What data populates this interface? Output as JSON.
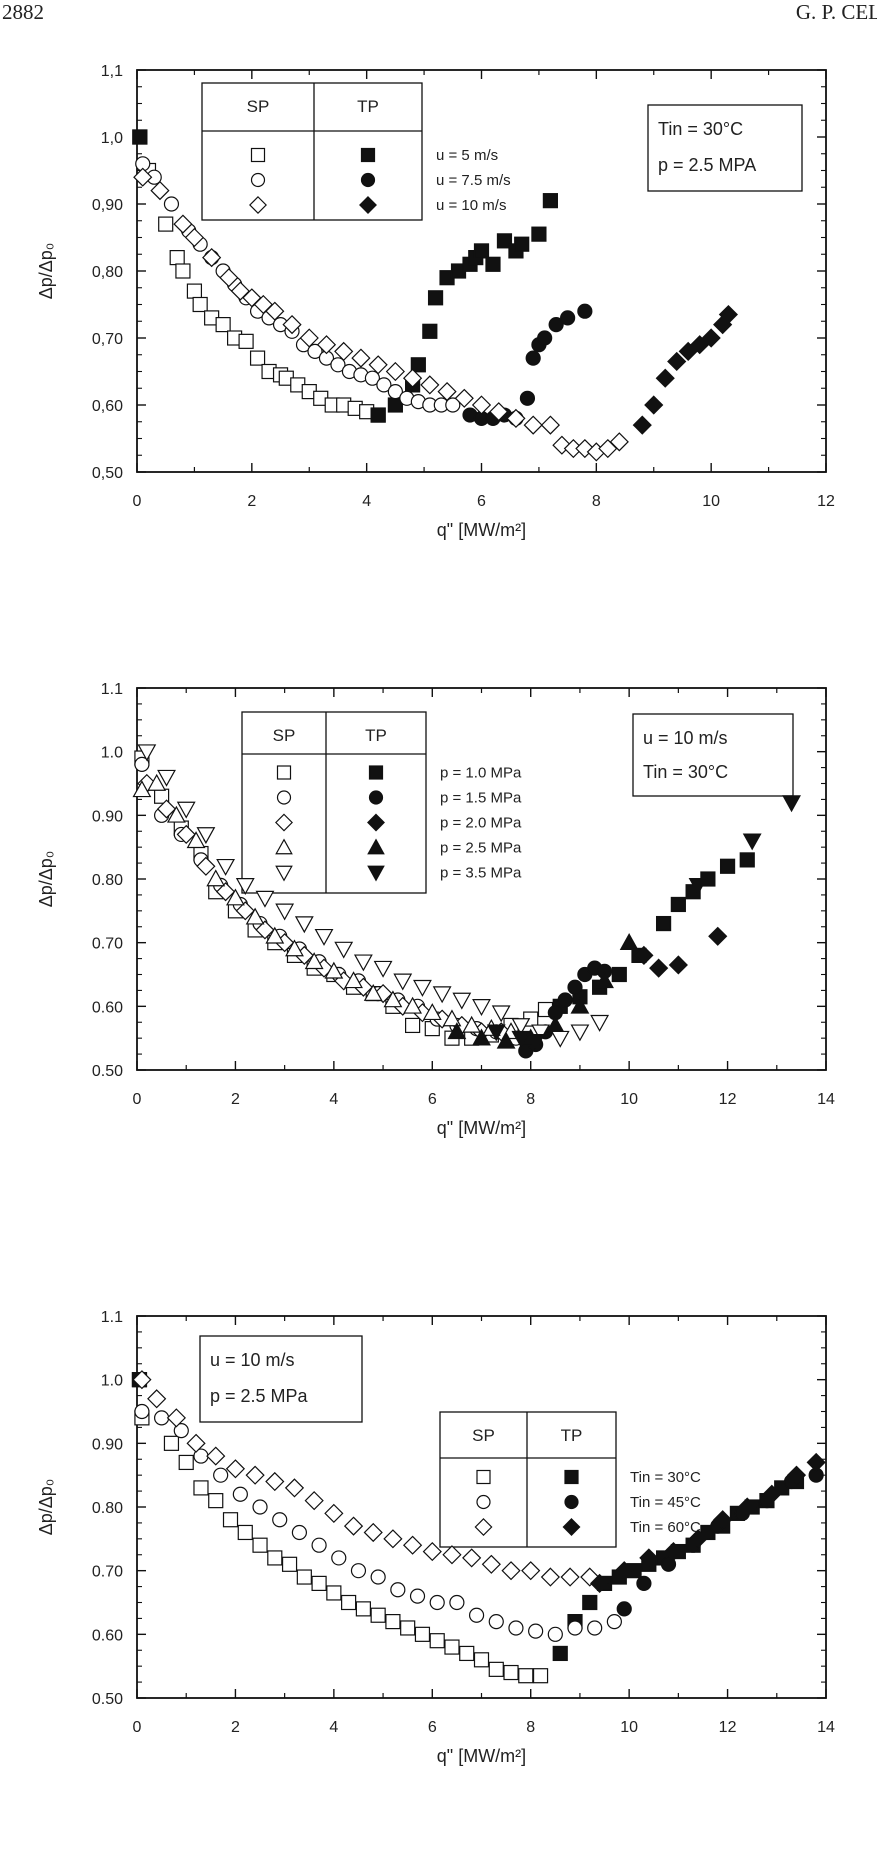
{
  "page": {
    "number": "2882",
    "running_head": "G. P. CEL"
  },
  "chart_data": [
    {
      "type": "scatter",
      "xlabel": "q\" [MW/m²]",
      "ylabel": "Δp/Δp₀",
      "xlim": [
        0,
        12
      ],
      "ylim": [
        0.5,
        1.1
      ],
      "x_ticks": [
        "0",
        "2",
        "4",
        "6",
        "8",
        "10",
        "12"
      ],
      "y_ticks": [
        "0,50",
        "0,60",
        "0,70",
        "0,80",
        "0,90",
        "1,0",
        "1,1"
      ],
      "legend": {
        "headers": [
          "SP",
          "TP"
        ],
        "entries": [
          "u = 5 m/s",
          "u = 7.5 m/s",
          "u = 10 m/s"
        ]
      },
      "info": [
        "Tin = 30°C",
        "p = 2.5 MPA"
      ],
      "series": [
        {
          "name": "u = 5 m/s",
          "regime": "SP",
          "shape": "square",
          "filled": false,
          "x": [
            0.05,
            0.2,
            0.5,
            0.7,
            0.8,
            1.0,
            1.1,
            1.3,
            1.5,
            1.7,
            1.9,
            2.1,
            2.3,
            2.5,
            2.6,
            2.8,
            3.0,
            3.2,
            3.4,
            3.6,
            3.8,
            4.0,
            4.2
          ],
          "y": [
            1.0,
            0.95,
            0.87,
            0.82,
            0.8,
            0.77,
            0.75,
            0.73,
            0.72,
            0.7,
            0.695,
            0.67,
            0.65,
            0.645,
            0.64,
            0.63,
            0.62,
            0.61,
            0.6,
            0.6,
            0.595,
            0.59,
            0.585
          ]
        },
        {
          "name": "u = 5 m/s",
          "regime": "TP",
          "shape": "square",
          "filled": true,
          "x": [
            0.05,
            4.2,
            4.5,
            4.8,
            4.9,
            5.1,
            5.2,
            5.4,
            5.6,
            5.8,
            5.9,
            6.0,
            6.2,
            6.4,
            6.6,
            6.7,
            7.0,
            7.2
          ],
          "y": [
            1.0,
            0.585,
            0.6,
            0.63,
            0.66,
            0.71,
            0.76,
            0.79,
            0.8,
            0.81,
            0.82,
            0.83,
            0.81,
            0.845,
            0.83,
            0.84,
            0.855,
            0.905
          ]
        },
        {
          "name": "u = 7.5 m/s",
          "regime": "SP",
          "shape": "circle",
          "filled": false,
          "x": [
            0.1,
            0.3,
            0.6,
            0.9,
            1.1,
            1.3,
            1.5,
            1.7,
            1.9,
            2.1,
            2.3,
            2.5,
            2.7,
            2.9,
            3.1,
            3.3,
            3.5,
            3.7,
            3.9,
            4.1,
            4.3,
            4.5,
            4.7,
            4.9,
            5.1,
            5.3,
            5.5
          ],
          "y": [
            0.96,
            0.94,
            0.9,
            0.86,
            0.84,
            0.82,
            0.8,
            0.78,
            0.76,
            0.74,
            0.73,
            0.72,
            0.71,
            0.69,
            0.68,
            0.67,
            0.66,
            0.65,
            0.645,
            0.64,
            0.63,
            0.62,
            0.61,
            0.605,
            0.6,
            0.6,
            0.6
          ]
        },
        {
          "name": "u = 7.5 m/s",
          "regime": "TP",
          "shape": "circle",
          "filled": true,
          "x": [
            5.8,
            6.0,
            6.2,
            6.4,
            6.6,
            6.8,
            6.9,
            7.0,
            7.1,
            7.3,
            7.5,
            7.8
          ],
          "y": [
            0.585,
            0.58,
            0.58,
            0.585,
            0.58,
            0.61,
            0.67,
            0.69,
            0.7,
            0.72,
            0.73,
            0.74
          ]
        },
        {
          "name": "u = 10 m/s",
          "regime": "SP",
          "shape": "diamond",
          "filled": false,
          "x": [
            0.1,
            0.4,
            0.8,
            1.0,
            1.3,
            1.6,
            1.8,
            2.0,
            2.2,
            2.4,
            2.7,
            3.0,
            3.3,
            3.6,
            3.9,
            4.2,
            4.5,
            4.8,
            5.1,
            5.4,
            5.7,
            6.0,
            6.3,
            6.6,
            6.9,
            7.2,
            7.4,
            7.6,
            7.8,
            8.0,
            8.2,
            8.4
          ],
          "y": [
            0.94,
            0.92,
            0.87,
            0.85,
            0.82,
            0.79,
            0.77,
            0.76,
            0.75,
            0.74,
            0.72,
            0.7,
            0.69,
            0.68,
            0.67,
            0.66,
            0.65,
            0.64,
            0.63,
            0.62,
            0.61,
            0.6,
            0.59,
            0.58,
            0.57,
            0.57,
            0.54,
            0.535,
            0.535,
            0.53,
            0.535,
            0.545
          ]
        },
        {
          "name": "u = 10 m/s",
          "regime": "TP",
          "shape": "diamond",
          "filled": true,
          "x": [
            8.8,
            9.0,
            9.2,
            9.4,
            9.6,
            9.8,
            10.0,
            10.2,
            10.3
          ],
          "y": [
            0.57,
            0.6,
            0.64,
            0.665,
            0.68,
            0.69,
            0.7,
            0.72,
            0.735
          ]
        }
      ]
    },
    {
      "type": "scatter",
      "xlabel": "q\" [MW/m²]",
      "ylabel": "Δp/Δp₀",
      "xlim": [
        0,
        14
      ],
      "ylim": [
        0.5,
        1.1
      ],
      "x_ticks": [
        "0",
        "2",
        "4",
        "6",
        "8",
        "10",
        "12",
        "14"
      ],
      "y_ticks": [
        "0.50",
        "0.60",
        "0.70",
        "0.80",
        "0.90",
        "1.0",
        "1.1"
      ],
      "legend": {
        "headers": [
          "SP",
          "TP"
        ],
        "entries": [
          "p = 1.0 MPa",
          "p = 1.5 MPa",
          "p = 2.0 MPa",
          "p = 2.5 MPa",
          "p = 3.5 MPa"
        ]
      },
      "info": [
        "u = 10 m/s",
        "Tin = 30°C"
      ],
      "series": [
        {
          "name": "p = 1.0 MPa",
          "regime": "SP",
          "shape": "square",
          "filled": false,
          "x": [
            0.1,
            0.5,
            0.9,
            1.3,
            1.6,
            2.0,
            2.4,
            2.8,
            3.2,
            3.6,
            4.0,
            4.4,
            4.8,
            5.2,
            5.6,
            6.0,
            6.4,
            6.8,
            7.2,
            7.6,
            8.0,
            8.3
          ],
          "y": [
            0.99,
            0.93,
            0.88,
            0.84,
            0.78,
            0.75,
            0.72,
            0.7,
            0.68,
            0.66,
            0.65,
            0.63,
            0.62,
            0.6,
            0.57,
            0.565,
            0.55,
            0.55,
            0.555,
            0.57,
            0.58,
            0.595
          ]
        },
        {
          "name": "p = 1.0 MPa",
          "regime": "TP",
          "shape": "square",
          "filled": true,
          "x": [
            8.6,
            9.0,
            9.4,
            9.8,
            10.2,
            10.7,
            11.0,
            11.3,
            11.6,
            12.0,
            12.4
          ],
          "y": [
            0.6,
            0.615,
            0.63,
            0.65,
            0.68,
            0.73,
            0.76,
            0.78,
            0.8,
            0.82,
            0.83
          ]
        },
        {
          "name": "p = 1.5 MPa",
          "regime": "SP",
          "shape": "circle",
          "filled": false,
          "x": [
            0.1,
            0.5,
            0.9,
            1.3,
            1.7,
            2.1,
            2.5,
            2.9,
            3.3,
            3.7,
            4.1,
            4.5,
            4.9,
            5.3,
            5.7,
            6.1,
            6.5,
            6.9,
            7.3,
            7.7
          ],
          "y": [
            0.98,
            0.9,
            0.87,
            0.83,
            0.79,
            0.76,
            0.73,
            0.71,
            0.69,
            0.67,
            0.65,
            0.64,
            0.62,
            0.61,
            0.6,
            0.58,
            0.57,
            0.565,
            0.56,
            0.55
          ]
        },
        {
          "name": "p = 1.5 MPa",
          "regime": "TP",
          "shape": "circle",
          "filled": true,
          "x": [
            7.9,
            8.1,
            8.3,
            8.5,
            8.7,
            8.9,
            9.1,
            9.3,
            9.5
          ],
          "y": [
            0.53,
            0.54,
            0.56,
            0.59,
            0.61,
            0.63,
            0.65,
            0.66,
            0.655
          ]
        },
        {
          "name": "p = 2.0 MPa",
          "regime": "SP",
          "shape": "diamond",
          "filled": false,
          "x": [
            0.2,
            0.6,
            1.0,
            1.4,
            1.8,
            2.2,
            2.6,
            3.0,
            3.4,
            3.8,
            4.2,
            4.6,
            5.0,
            5.4,
            5.8,
            6.2,
            6.6,
            7.0,
            7.4
          ],
          "y": [
            0.95,
            0.91,
            0.87,
            0.82,
            0.78,
            0.75,
            0.72,
            0.7,
            0.68,
            0.66,
            0.64,
            0.63,
            0.62,
            0.6,
            0.59,
            0.58,
            0.57,
            0.56,
            0.56
          ]
        },
        {
          "name": "p = 2.0 MPa",
          "regime": "TP",
          "shape": "diamond",
          "filled": true,
          "x": [
            10.3,
            10.6,
            11.0,
            11.8
          ],
          "y": [
            0.68,
            0.66,
            0.665,
            0.71
          ]
        },
        {
          "name": "p = 2.5 MPa",
          "regime": "SP",
          "shape": "triangle-up",
          "filled": false,
          "x": [
            0.1,
            0.4,
            0.8,
            1.2,
            1.6,
            2.0,
            2.4,
            2.8,
            3.2,
            3.6,
            4.0,
            4.4,
            4.8,
            5.2,
            5.6,
            6.0,
            6.4,
            6.8,
            7.2,
            7.6
          ],
          "y": [
            0.94,
            0.95,
            0.9,
            0.86,
            0.8,
            0.77,
            0.74,
            0.71,
            0.69,
            0.67,
            0.655,
            0.64,
            0.62,
            0.61,
            0.6,
            0.59,
            0.58,
            0.57,
            0.565,
            0.56
          ]
        },
        {
          "name": "p = 2.5 MPa",
          "regime": "TP",
          "shape": "triangle-up",
          "filled": true,
          "x": [
            6.5,
            7.0,
            7.5,
            8.0,
            8.5,
            9.0,
            9.5,
            10.0
          ],
          "y": [
            0.56,
            0.55,
            0.545,
            0.55,
            0.57,
            0.6,
            0.64,
            0.7
          ]
        },
        {
          "name": "p = 3.5 MPa",
          "regime": "SP",
          "shape": "triangle-down",
          "filled": false,
          "x": [
            0.2,
            0.6,
            1.0,
            1.4,
            1.8,
            2.2,
            2.6,
            3.0,
            3.4,
            3.8,
            4.2,
            4.6,
            5.0,
            5.4,
            5.8,
            6.2,
            6.6,
            7.0,
            7.4,
            7.8,
            8.2,
            8.6,
            9.0,
            9.4
          ],
          "y": [
            1.0,
            0.96,
            0.91,
            0.87,
            0.82,
            0.79,
            0.77,
            0.75,
            0.73,
            0.71,
            0.69,
            0.67,
            0.66,
            0.64,
            0.63,
            0.62,
            0.61,
            0.6,
            0.59,
            0.57,
            0.56,
            0.55,
            0.56,
            0.575
          ]
        },
        {
          "name": "p = 3.5 MPa",
          "regime": "TP",
          "shape": "triangle-down",
          "filled": true,
          "x": [
            7.3,
            7.8,
            8.1,
            11.4,
            12.5,
            13.3
          ],
          "y": [
            0.56,
            0.55,
            0.545,
            0.79,
            0.86,
            0.92
          ]
        }
      ]
    },
    {
      "type": "scatter",
      "xlabel": "q\" [MW/m²]",
      "ylabel": "Δp/Δp₀",
      "xlim": [
        0,
        14
      ],
      "ylim": [
        0.5,
        1.1
      ],
      "x_ticks": [
        "0",
        "2",
        "4",
        "6",
        "8",
        "10",
        "12",
        "14"
      ],
      "y_ticks": [
        "0.50",
        "0.60",
        "0.70",
        "0.80",
        "0.90",
        "1.0",
        "1.1"
      ],
      "legend": {
        "headers": [
          "SP",
          "TP"
        ],
        "entries": [
          "Tin = 30°C",
          "Tin = 45°C",
          "Tin = 60°C"
        ]
      },
      "info": [
        "u = 10 m/s",
        "p = 2.5 MPa"
      ],
      "series": [
        {
          "name": "Tin = 30°C",
          "regime": "SP",
          "shape": "square",
          "filled": false,
          "x": [
            0.05,
            0.1,
            0.7,
            1.0,
            1.3,
            1.6,
            1.9,
            2.2,
            2.5,
            2.8,
            3.1,
            3.4,
            3.7,
            4.0,
            4.3,
            4.6,
            4.9,
            5.2,
            5.5,
            5.8,
            6.1,
            6.4,
            6.7,
            7.0,
            7.3,
            7.6,
            7.9,
            8.2
          ],
          "y": [
            1.0,
            0.94,
            0.9,
            0.87,
            0.83,
            0.81,
            0.78,
            0.76,
            0.74,
            0.72,
            0.71,
            0.69,
            0.68,
            0.665,
            0.65,
            0.64,
            0.63,
            0.62,
            0.61,
            0.6,
            0.59,
            0.58,
            0.57,
            0.56,
            0.545,
            0.54,
            0.535,
            0.535
          ]
        },
        {
          "name": "Tin = 30°C",
          "regime": "TP",
          "shape": "square",
          "filled": true,
          "x": [
            0.05,
            8.6,
            8.9,
            9.2,
            9.5,
            9.8,
            10.1,
            10.4,
            10.7,
            11.0,
            11.3,
            11.6,
            11.9,
            12.2,
            12.5,
            12.8,
            13.1,
            13.4
          ],
          "y": [
            1.0,
            0.57,
            0.62,
            0.65,
            0.68,
            0.69,
            0.7,
            0.71,
            0.72,
            0.73,
            0.74,
            0.76,
            0.77,
            0.79,
            0.8,
            0.81,
            0.83,
            0.84
          ]
        },
        {
          "name": "Tin = 45°C",
          "regime": "SP",
          "shape": "circle",
          "filled": false,
          "x": [
            0.1,
            0.5,
            0.9,
            1.3,
            1.7,
            2.1,
            2.5,
            2.9,
            3.3,
            3.7,
            4.1,
            4.5,
            4.9,
            5.3,
            5.7,
            6.1,
            6.5,
            6.9,
            7.3,
            7.7,
            8.1,
            8.5,
            8.9,
            9.3,
            9.7
          ],
          "y": [
            0.95,
            0.94,
            0.92,
            0.88,
            0.85,
            0.82,
            0.8,
            0.78,
            0.76,
            0.74,
            0.72,
            0.7,
            0.69,
            0.67,
            0.66,
            0.65,
            0.65,
            0.63,
            0.62,
            0.61,
            0.605,
            0.6,
            0.61,
            0.61,
            0.62
          ]
        },
        {
          "name": "Tin = 45°C",
          "regime": "TP",
          "shape": "circle",
          "filled": true,
          "x": [
            9.9,
            10.3,
            10.8,
            11.3,
            11.8,
            12.3,
            12.8,
            13.3,
            13.8
          ],
          "y": [
            0.64,
            0.68,
            0.71,
            0.74,
            0.77,
            0.79,
            0.81,
            0.84,
            0.85
          ]
        },
        {
          "name": "Tin = 60°C",
          "regime": "SP",
          "shape": "diamond",
          "filled": false,
          "x": [
            0.1,
            0.4,
            0.8,
            1.2,
            1.6,
            2.0,
            2.4,
            2.8,
            3.2,
            3.6,
            4.0,
            4.4,
            4.8,
            5.2,
            5.6,
            6.0,
            6.4,
            6.8,
            7.2,
            7.6,
            8.0,
            8.4,
            8.8,
            9.2
          ],
          "y": [
            1.0,
            0.97,
            0.94,
            0.9,
            0.88,
            0.86,
            0.85,
            0.84,
            0.83,
            0.81,
            0.79,
            0.77,
            0.76,
            0.75,
            0.74,
            0.73,
            0.725,
            0.72,
            0.71,
            0.7,
            0.7,
            0.69,
            0.69,
            0.69
          ]
        },
        {
          "name": "Tin = 60°C",
          "regime": "TP",
          "shape": "diamond",
          "filled": true,
          "x": [
            9.4,
            9.9,
            10.4,
            10.9,
            11.4,
            11.9,
            12.4,
            12.9,
            13.4,
            13.8
          ],
          "y": [
            0.68,
            0.7,
            0.72,
            0.73,
            0.75,
            0.78,
            0.8,
            0.82,
            0.85,
            0.87
          ]
        }
      ]
    }
  ]
}
